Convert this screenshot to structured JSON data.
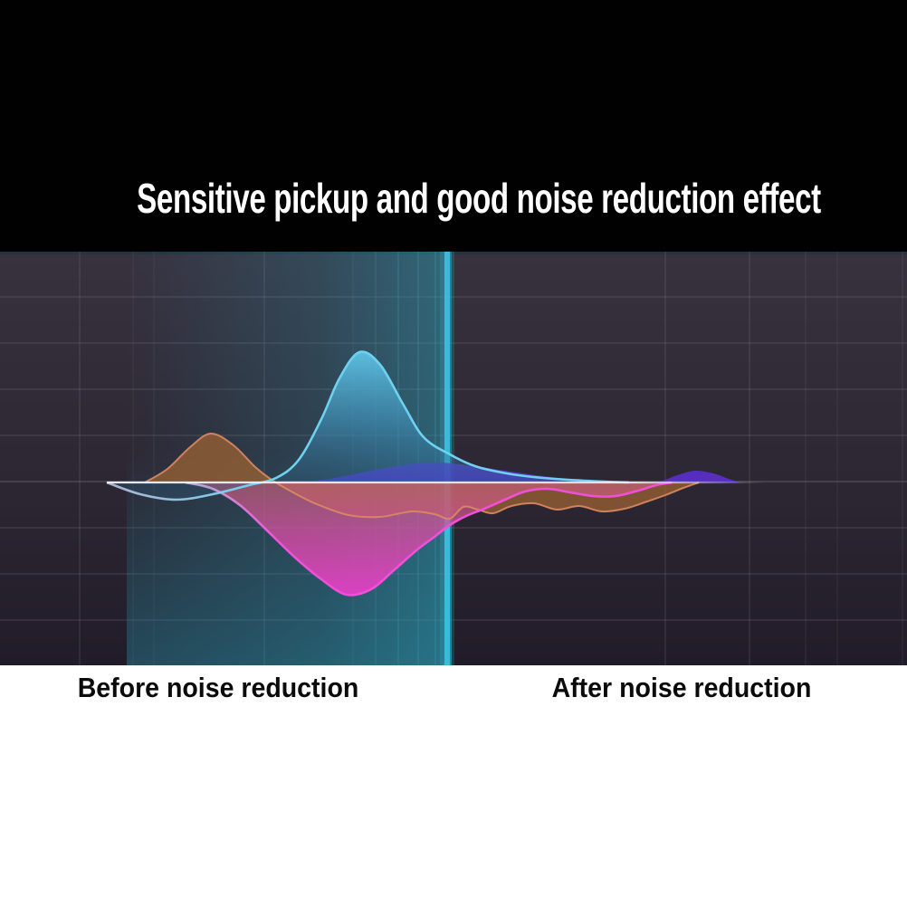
{
  "header": {
    "title": "Sensitive pickup and good noise reduction effect"
  },
  "colors": {
    "page_bg": "#ffffff",
    "header_bg": "#010101",
    "title_color": "#ffffff",
    "label_color": "#0b0b0b",
    "chart_bg_top": "#38323f",
    "chart_bg_mid": "#2c2733",
    "chart_bg_bottom": "#211c29",
    "chart_top_edge": "#1d3540",
    "teal_highlight": "#2aa0b8",
    "divider": "#38c2df",
    "grid": "#c8c8d8",
    "grid_teal": "#7fdcea",
    "baseline": "#eef3f8",
    "stroke_periwinkle": "#c2cbe9",
    "wave_blue_top": "#5ec4e6",
    "wave_blue_mid": "#3f8cb4",
    "wave_blue_low": "#2d5f86",
    "wave_blue_stroke": "#6fd0ef",
    "wave_indigo": "#4f3edc",
    "wave_violet": "#5c2dcb",
    "wave_orange_fill": "#a06432",
    "wave_orange_stroke": "#dd8a62",
    "wave_pink_top": "#c96378",
    "wave_pink_mid": "#d64ba4",
    "wave_pink_bottom": "#e43fc8",
    "wave_pink_stroke": "#f14fd9"
  },
  "chart_data": {
    "type": "area",
    "title": "Sensitive pickup and good noise reduction effect",
    "xlabel": "",
    "ylabel": "",
    "grid": true,
    "legend": "none",
    "baseline": {
      "y": 533,
      "x1": 118,
      "x2": 845
    },
    "divider_x": 494,
    "regions": [
      {
        "label": "Before noise reduction",
        "x_range": [
          0,
          494
        ]
      },
      {
        "label": "After noise reduction",
        "x_range": [
          494,
          1002
        ]
      }
    ],
    "series": [
      {
        "name": "blue",
        "description": "large cyan-blue voice wave, tall peak before divider, decays after",
        "points": [
          [
            118,
            533
          ],
          [
            155,
            546
          ],
          [
            195,
            552
          ],
          [
            235,
            546
          ],
          [
            275,
            536
          ],
          [
            305,
            528
          ],
          [
            330,
            508
          ],
          [
            355,
            463
          ],
          [
            375,
            418
          ],
          [
            397,
            389
          ],
          [
            420,
            403
          ],
          [
            445,
            446
          ],
          [
            468,
            483
          ],
          [
            497,
            502
          ],
          [
            525,
            515
          ],
          [
            560,
            523
          ],
          [
            600,
            528
          ],
          [
            645,
            531
          ],
          [
            695,
            533
          ]
        ]
      },
      {
        "name": "indigo",
        "description": "low indigo-violet hump above baseline crossing divider, second small violet hump far right",
        "points": [
          [
            330,
            533
          ],
          [
            370,
            528
          ],
          [
            410,
            520
          ],
          [
            450,
            513
          ],
          [
            480,
            511
          ],
          [
            500,
            512
          ],
          [
            530,
            516
          ],
          [
            565,
            521
          ],
          [
            600,
            526
          ],
          [
            640,
            530
          ],
          [
            675,
            532
          ],
          [
            700,
            533
          ],
          [
            728,
            532
          ],
          [
            748,
            525
          ],
          [
            768,
            520
          ],
          [
            788,
            523
          ],
          [
            805,
            529
          ],
          [
            818,
            533
          ]
        ]
      },
      {
        "name": "orange",
        "description": "orange-brown wave, bump above baseline at left, wiggly shallow tail below baseline to the right",
        "points": [
          [
            160,
            533
          ],
          [
            185,
            518
          ],
          [
            210,
            494
          ],
          [
            233,
            479
          ],
          [
            258,
            492
          ],
          [
            282,
            516
          ],
          [
            300,
            530
          ],
          [
            322,
            543
          ],
          [
            350,
            557
          ],
          [
            385,
            569
          ],
          [
            420,
            571
          ],
          [
            455,
            565
          ],
          [
            480,
            568
          ],
          [
            497,
            573
          ],
          [
            512,
            560
          ],
          [
            528,
            563
          ],
          [
            545,
            567
          ],
          [
            565,
            559
          ],
          [
            590,
            556
          ],
          [
            615,
            563
          ],
          [
            640,
            559
          ],
          [
            665,
            565
          ],
          [
            690,
            562
          ],
          [
            715,
            554
          ],
          [
            735,
            547
          ],
          [
            755,
            539
          ],
          [
            772,
            533
          ]
        ]
      },
      {
        "name": "pink",
        "description": "deep magenta-pink wave below baseline, deep trough before divider, shallow tail after",
        "points": [
          [
            205,
            533
          ],
          [
            235,
            540
          ],
          [
            265,
            558
          ],
          [
            295,
            586
          ],
          [
            325,
            615
          ],
          [
            355,
            640
          ],
          [
            383,
            657
          ],
          [
            410,
            651
          ],
          [
            435,
            630
          ],
          [
            460,
            608
          ],
          [
            480,
            593
          ],
          [
            497,
            580
          ],
          [
            515,
            570
          ],
          [
            535,
            562
          ],
          [
            558,
            552
          ],
          [
            580,
            543
          ],
          [
            605,
            540
          ],
          [
            630,
            544
          ],
          [
            655,
            548
          ],
          [
            680,
            548
          ],
          [
            705,
            542
          ],
          [
            725,
            536
          ],
          [
            742,
            533
          ]
        ]
      }
    ]
  }
}
